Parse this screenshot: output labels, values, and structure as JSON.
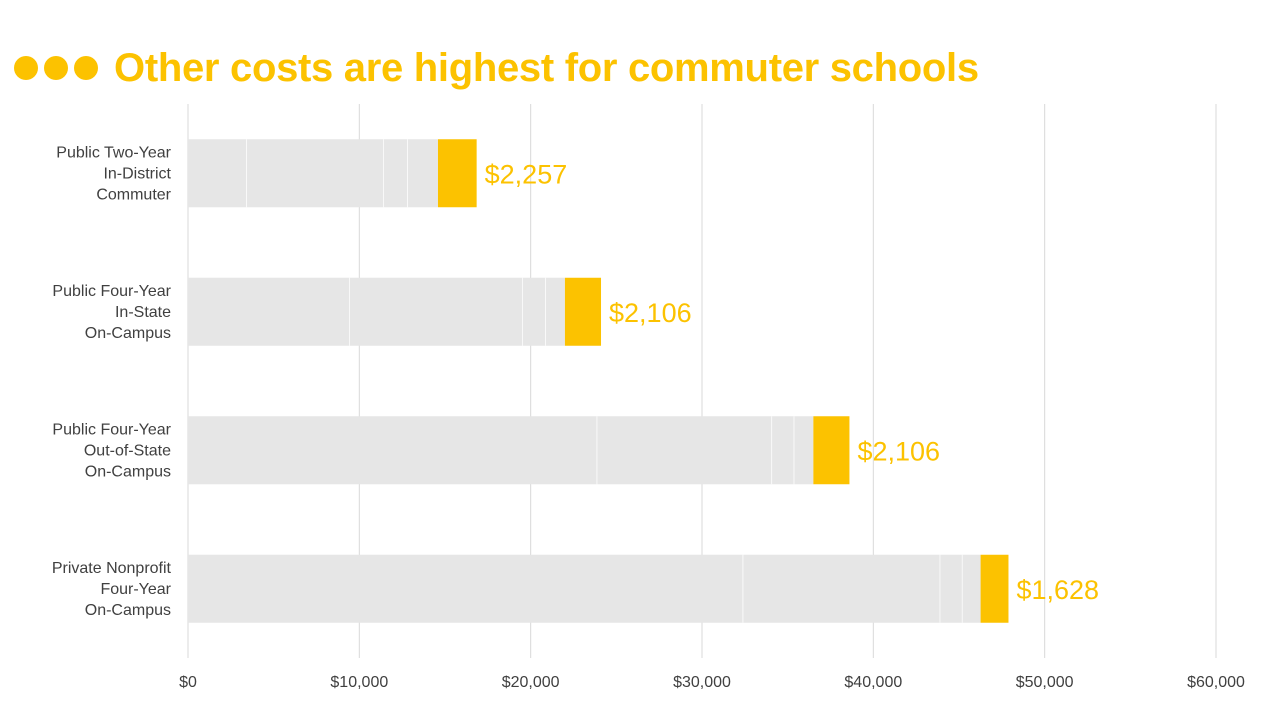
{
  "header": {
    "title": "Other costs are highest for commuter schools"
  },
  "colors": {
    "accent": "#fcc200",
    "segment": "#e6e6e6",
    "divider": "#ffffff",
    "grid": "#d9d9d9",
    "text": "#404040"
  },
  "chart_data": {
    "type": "bar",
    "orientation": "horizontal",
    "stacked": true,
    "title": "Other costs are highest for commuter schools",
    "xlabel": "",
    "ylabel": "",
    "xlim": [
      0,
      60000
    ],
    "x_ticks": [
      0,
      10000,
      20000,
      30000,
      40000,
      50000,
      60000
    ],
    "x_tick_labels": [
      "$0",
      "$10,000",
      "$20,000",
      "$30,000",
      "$40,000",
      "$50,000",
      "$60,000"
    ],
    "grid": true,
    "legend": "none",
    "categories": [
      [
        "Public Two-Year",
        "In-District",
        "Commuter"
      ],
      [
        "Public Four-Year",
        "In-State",
        "On-Campus"
      ],
      [
        "Public Four-Year",
        "Out-of-State",
        "On-Campus"
      ],
      [
        "Private Nonprofit",
        "Four-Year",
        "On-Campus"
      ]
    ],
    "series": [
      {
        "values": [
          3440,
          9440,
          23890,
          32410
        ]
      },
      {
        "values": [
          8000,
          10100,
          10200,
          11500
        ]
      },
      {
        "values": [
          1400,
          1350,
          1300,
          1300
        ]
      },
      {
        "values": [
          1750,
          1110,
          1110,
          1050
        ]
      },
      {
        "values": [
          2257,
          2106,
          2106,
          1628
        ],
        "highlight": true
      }
    ],
    "data_labels": [
      "$2,257",
      "$2,106",
      "$2,106",
      "$1,628"
    ]
  }
}
